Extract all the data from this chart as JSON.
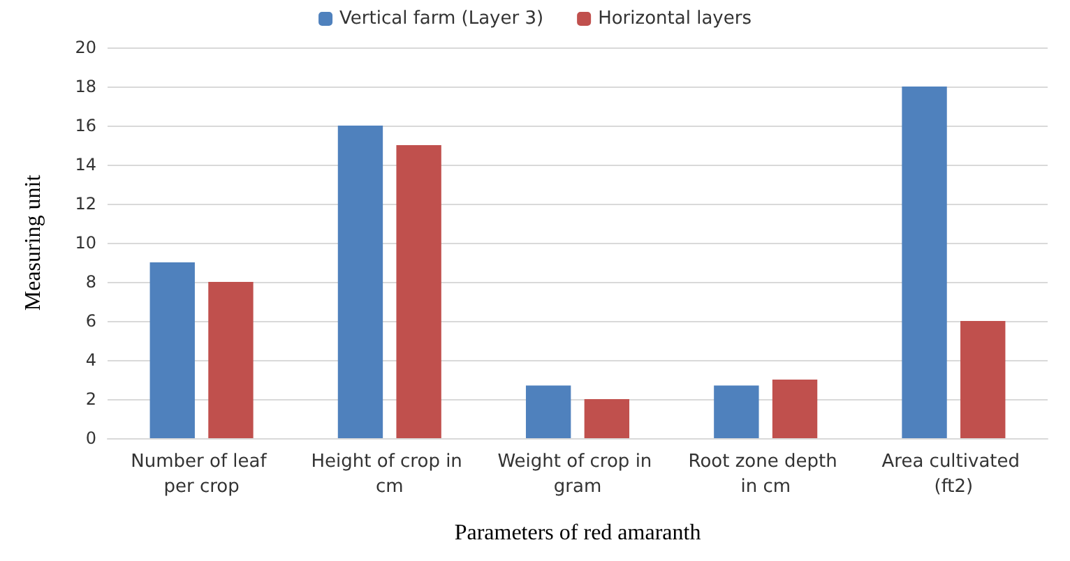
{
  "chart_data": {
    "type": "bar",
    "xlabel": "Parameters of red amaranth",
    "ylabel": "Measuring unit",
    "categories": [
      "Number of leaf per crop",
      "Height of crop in cm",
      "Weight of crop in gram",
      "Root zone depth in cm",
      "Area cultivated (ft2)"
    ],
    "series": [
      {
        "name": "Vertical farm (Layer 3)",
        "color": "#4f81bd",
        "values": [
          9,
          16,
          2.7,
          2.7,
          18
        ]
      },
      {
        "name": "Horizontal layers",
        "color": "#c0504d",
        "values": [
          8,
          15,
          2,
          3,
          6
        ]
      }
    ],
    "ylim": [
      0,
      20
    ],
    "yticks": [
      0,
      2,
      4,
      6,
      8,
      10,
      12,
      14,
      16,
      18,
      20
    ],
    "grid": "y",
    "legend": "top"
  }
}
